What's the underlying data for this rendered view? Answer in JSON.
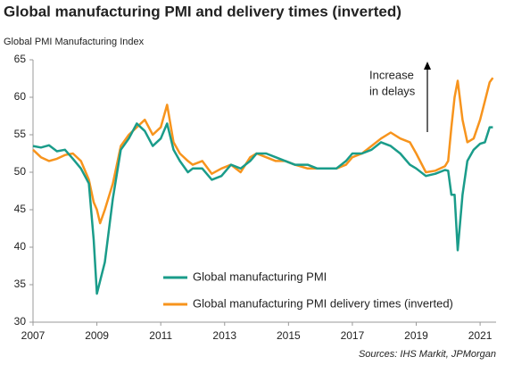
{
  "chart_data": {
    "type": "line",
    "title": "Global manufacturing PMI and delivery times (inverted)",
    "y_axis_label": "Global PMI Manufacturing Index",
    "annotation": [
      "Increase",
      "in delays"
    ],
    "source": "Sources: IHS Markit, JPMorgan",
    "x": [
      2007.0,
      2007.25,
      2007.5,
      2007.75,
      2008.0,
      2008.25,
      2008.5,
      2008.75,
      2008.9,
      2009.0,
      2009.1,
      2009.25,
      2009.5,
      2009.75,
      2010.0,
      2010.25,
      2010.5,
      2010.75,
      2011.0,
      2011.2,
      2011.4,
      2011.6,
      2011.85,
      2012.0,
      2012.3,
      2012.6,
      2012.9,
      2013.2,
      2013.5,
      2013.8,
      2014.0,
      2014.3,
      2014.6,
      2014.9,
      2015.2,
      2015.6,
      2015.9,
      2016.2,
      2016.5,
      2016.8,
      2017.0,
      2017.3,
      2017.6,
      2017.9,
      2018.2,
      2018.5,
      2018.8,
      2019.0,
      2019.3,
      2019.6,
      2019.9,
      2020.0,
      2020.1,
      2020.2,
      2020.3,
      2020.45,
      2020.6,
      2020.8,
      2021.0,
      2021.15,
      2021.3,
      2021.4
    ],
    "series": [
      {
        "name": "Global manufacturing PMI",
        "color": "#1a9c8a",
        "values": [
          53.5,
          53.3,
          53.6,
          52.8,
          53.0,
          51.8,
          50.5,
          48.5,
          41.0,
          33.8,
          35.5,
          38.0,
          46.5,
          53.0,
          54.5,
          56.5,
          55.5,
          53.5,
          54.5,
          56.5,
          53.0,
          51.5,
          50.0,
          50.5,
          50.5,
          49.0,
          49.5,
          51.0,
          50.5,
          51.5,
          52.5,
          52.5,
          52.0,
          51.5,
          51.0,
          51.0,
          50.5,
          50.5,
          50.5,
          51.5,
          52.5,
          52.5,
          53.0,
          54.0,
          53.5,
          52.5,
          51.0,
          50.5,
          49.5,
          49.8,
          50.3,
          50.2,
          47.0,
          47.0,
          39.6,
          47.0,
          51.5,
          53.0,
          53.8,
          54.0,
          56.0,
          56.0
        ]
      },
      {
        "name": "Global manufacturing PMI delivery times (inverted)",
        "color": "#f7941d",
        "values": [
          53.0,
          52.0,
          51.5,
          51.8,
          52.3,
          52.5,
          51.5,
          49.0,
          46.0,
          45.0,
          43.2,
          45.0,
          48.5,
          53.5,
          55.0,
          56.0,
          57.0,
          55.0,
          56.0,
          59.0,
          54.0,
          52.5,
          51.5,
          51.0,
          51.5,
          49.8,
          50.5,
          51.0,
          50.0,
          52.0,
          52.5,
          52.0,
          51.5,
          51.5,
          51.0,
          50.5,
          50.5,
          50.5,
          50.5,
          51.0,
          52.0,
          52.5,
          53.5,
          54.5,
          55.3,
          54.5,
          54.0,
          52.5,
          50.0,
          50.2,
          50.8,
          51.5,
          56.0,
          60.0,
          62.2,
          57.0,
          54.0,
          54.5,
          57.0,
          59.5,
          62.0,
          62.6
        ]
      }
    ],
    "xlim": [
      2007,
      2021.5
    ],
    "xticks": [
      2007,
      2009,
      2011,
      2013,
      2015,
      2017,
      2019,
      2021
    ],
    "ylim": [
      30,
      65
    ],
    "yticks": [
      30,
      35,
      40,
      45,
      50,
      55,
      60,
      65
    ],
    "grid": false
  }
}
